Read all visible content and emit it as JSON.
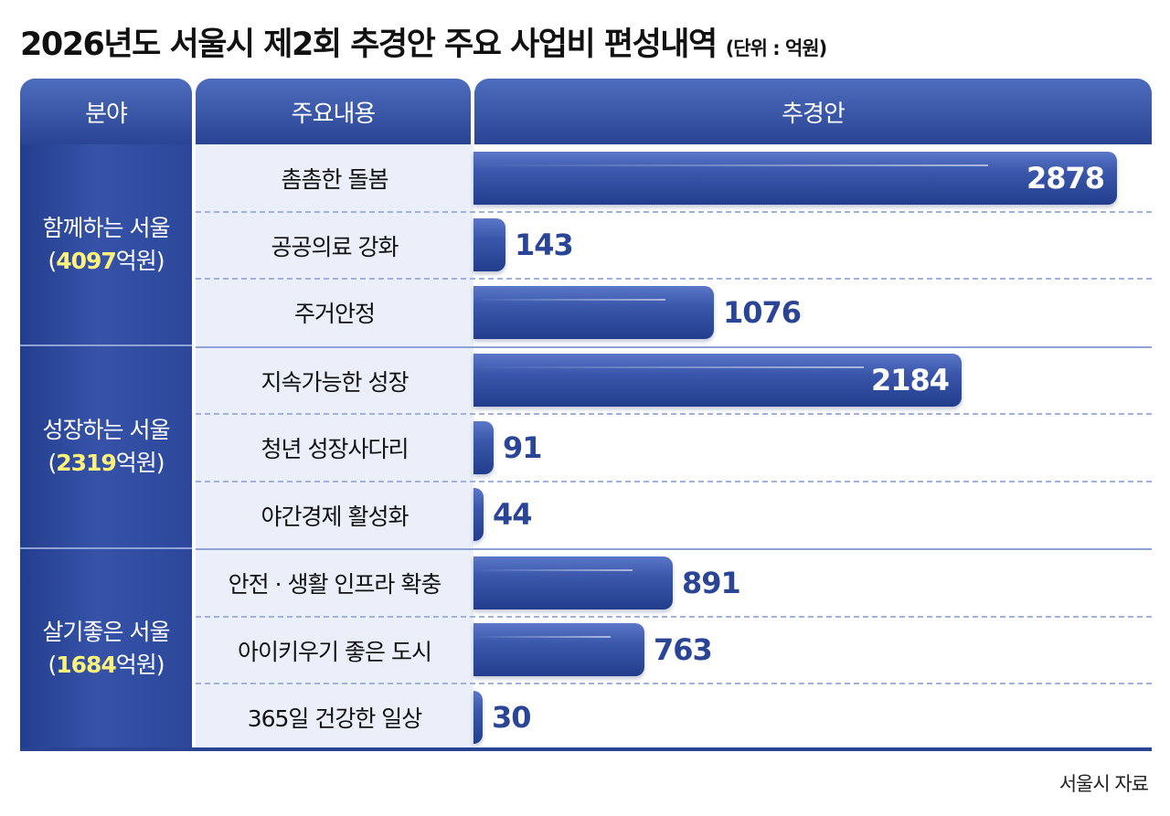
{
  "title": "2026년도 서울시 제2회 추경안 주요 사업비 편성내역",
  "unit": "(단위 : 억원)",
  "headers": {
    "category": "분야",
    "item": "주요내용",
    "value": "추경안"
  },
  "source": "서울시 자료",
  "categories": [
    {
      "name": "함께하는 서울",
      "open": "(",
      "total": "4097",
      "suffix": "억원)"
    },
    {
      "name": "성장하는 서울",
      "open": "(",
      "total": "2319",
      "suffix": "억원)"
    },
    {
      "name": "살기좋은 서울",
      "open": "(",
      "total": "1684",
      "suffix": "억원)"
    }
  ],
  "chart_data": {
    "type": "bar",
    "orientation": "horizontal",
    "categories": [
      "촘촘한 돌봄",
      "공공의료 강화",
      "주거안정",
      "지속가능한 성장",
      "청년 성장사다리",
      "야간경제 활성화",
      "안전 · 생활 인프라 확충",
      "아이키우기 좋은 도시",
      "365일 건강한 일상"
    ],
    "values": [
      2878,
      143,
      1076,
      2184,
      91,
      44,
      891,
      763,
      30
    ],
    "groups": [
      "함께하는 서울",
      "함께하는 서울",
      "함께하는 서울",
      "성장하는 서울",
      "성장하는 서울",
      "성장하는 서울",
      "살기좋은 서울",
      "살기좋은 서울",
      "살기좋은 서울"
    ],
    "title": "2026년도 서울시 제2회 추경안 주요 사업비 편성내역",
    "unit": "억원",
    "xlim": [
      0,
      3000
    ],
    "grid": false,
    "bar_color": "#2f4ca1",
    "label_color": "#2b4596",
    "highlight_color": "#fff27a"
  }
}
